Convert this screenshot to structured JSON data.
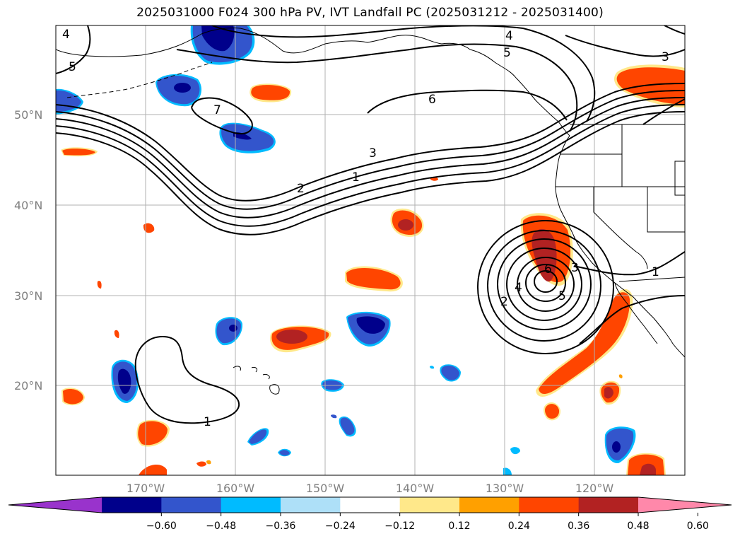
{
  "title": "2025031000 F024 300 hPa PV, IVT Landfall PC (2025031212 - 2025031400)",
  "map": {
    "lat_labels": [
      "50°N",
      "40°N",
      "30°N",
      "20°N"
    ],
    "lon_labels": [
      "170°W",
      "160°W",
      "150°W",
      "140°W",
      "130°W",
      "120°W"
    ],
    "contour_labels": [
      "4",
      "5",
      "5",
      "4",
      "3",
      "6",
      "7",
      "3",
      "2",
      "1",
      "6",
      "3",
      "4",
      "2",
      "5",
      "1",
      "1"
    ]
  },
  "colorbar": {
    "ticks": [
      "−0.60",
      "−0.48",
      "−0.36",
      "−0.24",
      "−0.12",
      "0.12",
      "0.24",
      "0.36",
      "0.48",
      "0.60"
    ],
    "colors": [
      "#9933cc",
      "#00008b",
      "#3355cc",
      "#00bbff",
      "#aee0f8",
      "#ffffff",
      "#ffe88a",
      "#ffa000",
      "#ff4500",
      "#b22222",
      "#ff88aa"
    ]
  },
  "colors": {
    "pos_low": "#ffe88a",
    "pos_mid": "#ffa000",
    "pos_high": "#ff4500",
    "pos_max": "#b22222",
    "neg_low": "#00bbff",
    "neg_mid": "#3355cc",
    "neg_max": "#00008b",
    "grid": "#b0b0b0",
    "axis_label": "#808080"
  }
}
